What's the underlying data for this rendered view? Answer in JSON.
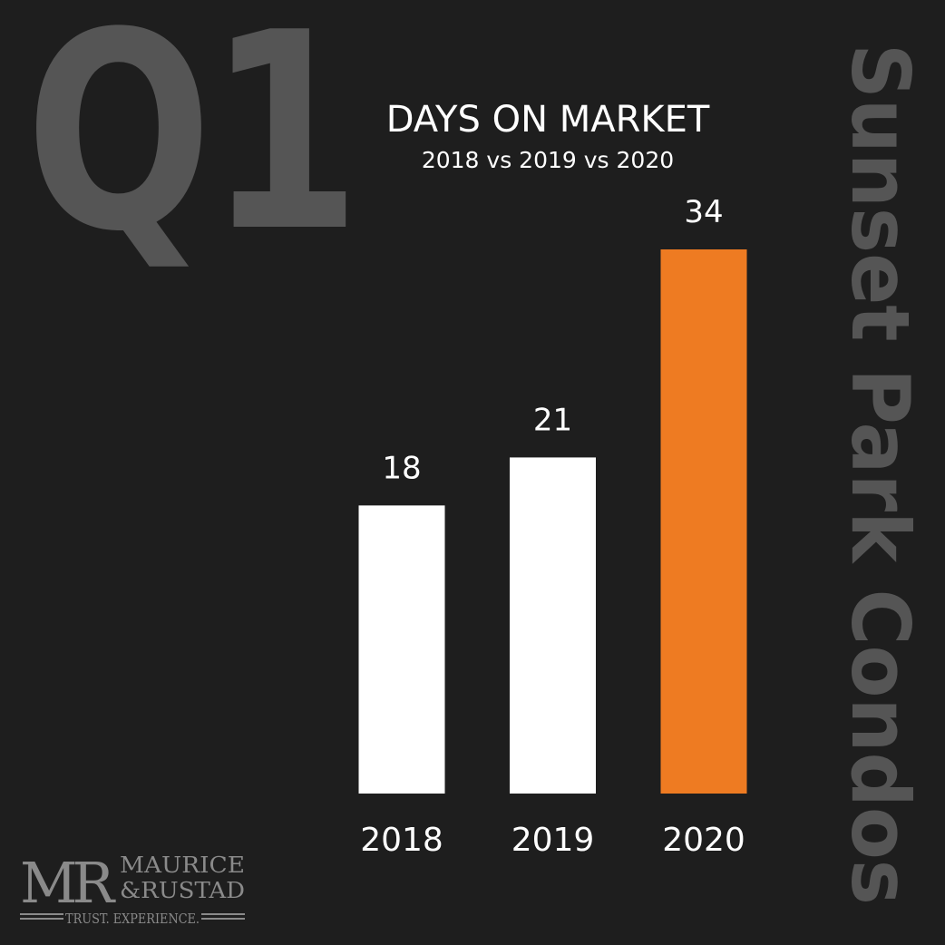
{
  "chart_data": {
    "type": "bar",
    "quarter": "Q1",
    "title": "DAYS ON MARKET",
    "subtitle": "2018 vs 2019 vs 2020",
    "side_title": "Sunset Park Condos",
    "categories": [
      "2018",
      "2019",
      "2020"
    ],
    "values": [
      18,
      21,
      34
    ],
    "colors": [
      "#ffffff",
      "#ffffff",
      "#ee7b22"
    ]
  },
  "branding": {
    "monogram": "MR",
    "name_line1": "MAURICE",
    "name_line2": "&RUSTAD",
    "tagline": "TRUST. EXPERIENCE."
  }
}
